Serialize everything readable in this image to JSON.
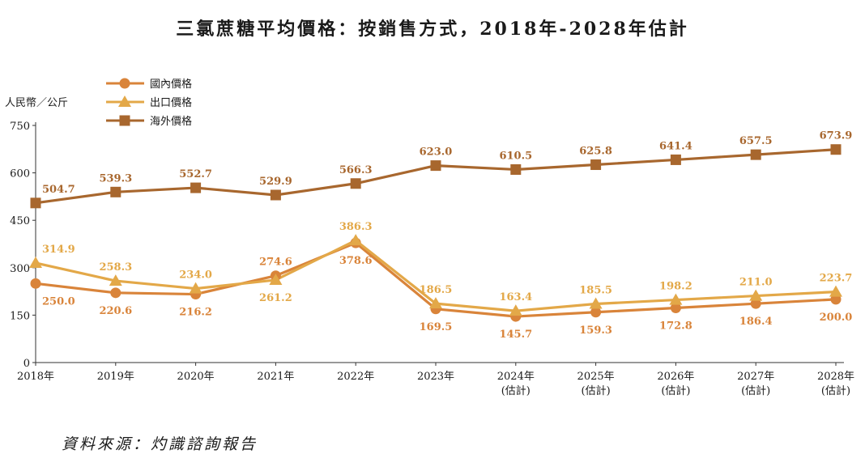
{
  "title": "三氯蔗糖平均價格：按銷售方式，2018年-2028年估計",
  "source": "資料來源：灼識諮詢報告",
  "chart_data": {
    "type": "line",
    "title": "三氯蔗糖平均價格：按銷售方式，2018年-2028年估計",
    "ylabel": "人民幣／公斤",
    "ylim": [
      0,
      750
    ],
    "yticks": [
      0,
      150,
      300,
      450,
      600,
      750
    ],
    "grid": false,
    "legend_position": "top-left",
    "categories": [
      {
        "year": "2018年",
        "note": ""
      },
      {
        "year": "2019年",
        "note": ""
      },
      {
        "year": "2020年",
        "note": ""
      },
      {
        "year": "2021年",
        "note": ""
      },
      {
        "year": "2022年",
        "note": ""
      },
      {
        "year": "2023年",
        "note": ""
      },
      {
        "year": "2024年",
        "note": "(估計)"
      },
      {
        "year": "2025年",
        "note": "(估計)"
      },
      {
        "year": "2026年",
        "note": "(估計)"
      },
      {
        "year": "2027年",
        "note": "(估計)"
      },
      {
        "year": "2028年",
        "note": "(估計)"
      }
    ],
    "series": [
      {
        "name": "國內價格",
        "marker": "circle",
        "color": "#D9843A",
        "label_position": "below",
        "values": [
          250.0,
          220.6,
          216.2,
          274.6,
          378.6,
          169.5,
          145.7,
          159.3,
          172.8,
          186.4,
          200.0
        ],
        "labels": [
          "250.0",
          "220.6",
          "216.2",
          "274.6",
          "378.6",
          "169.5",
          "145.7",
          "159.3",
          "172.8",
          "186.4",
          "200.0"
        ]
      },
      {
        "name": "出口價格",
        "marker": "triangle",
        "color": "#E3A848",
        "label_position": "above",
        "values": [
          314.9,
          258.3,
          234.0,
          261.2,
          386.3,
          186.5,
          163.4,
          185.5,
          198.2,
          211.0,
          223.7
        ],
        "labels": [
          "314.9",
          "258.3",
          "234.0",
          "261.2",
          "386.3",
          "186.5",
          "163.4",
          "185.5",
          "198.2",
          "211.0",
          "223.7"
        ]
      },
      {
        "name": "海外價格",
        "marker": "square",
        "color": "#A8672E",
        "label_position": "above",
        "values": [
          504.7,
          539.3,
          552.7,
          529.9,
          566.3,
          623.0,
          610.5,
          625.8,
          641.4,
          657.5,
          673.9
        ],
        "labels": [
          "504.7",
          "539.3",
          "552.7",
          "529.9",
          "566.3",
          "623.0",
          "610.5",
          "625.8",
          "641.4",
          "657.5",
          "673.9"
        ]
      }
    ]
  }
}
